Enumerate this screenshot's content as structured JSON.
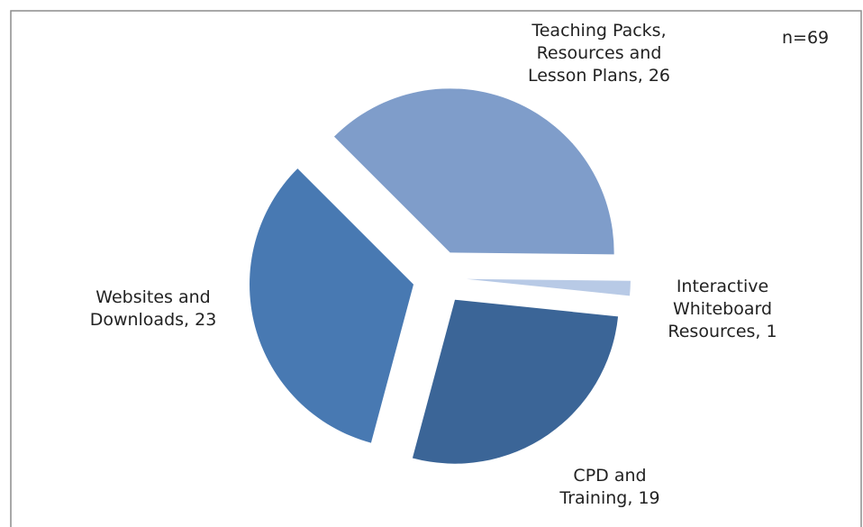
{
  "chart_data": {
    "type": "pie",
    "annotation": "n=69",
    "categories": [
      "Teaching Packs, Resources and Lesson Plans,",
      "Interactive Whiteboard Resources,",
      "CPD and Training,",
      "Websites and Downloads,"
    ],
    "values": [
      26,
      1,
      19,
      23
    ],
    "colors": [
      "#7f9dca",
      "#b8cae6",
      "#3b6597",
      "#4879b2"
    ]
  }
}
